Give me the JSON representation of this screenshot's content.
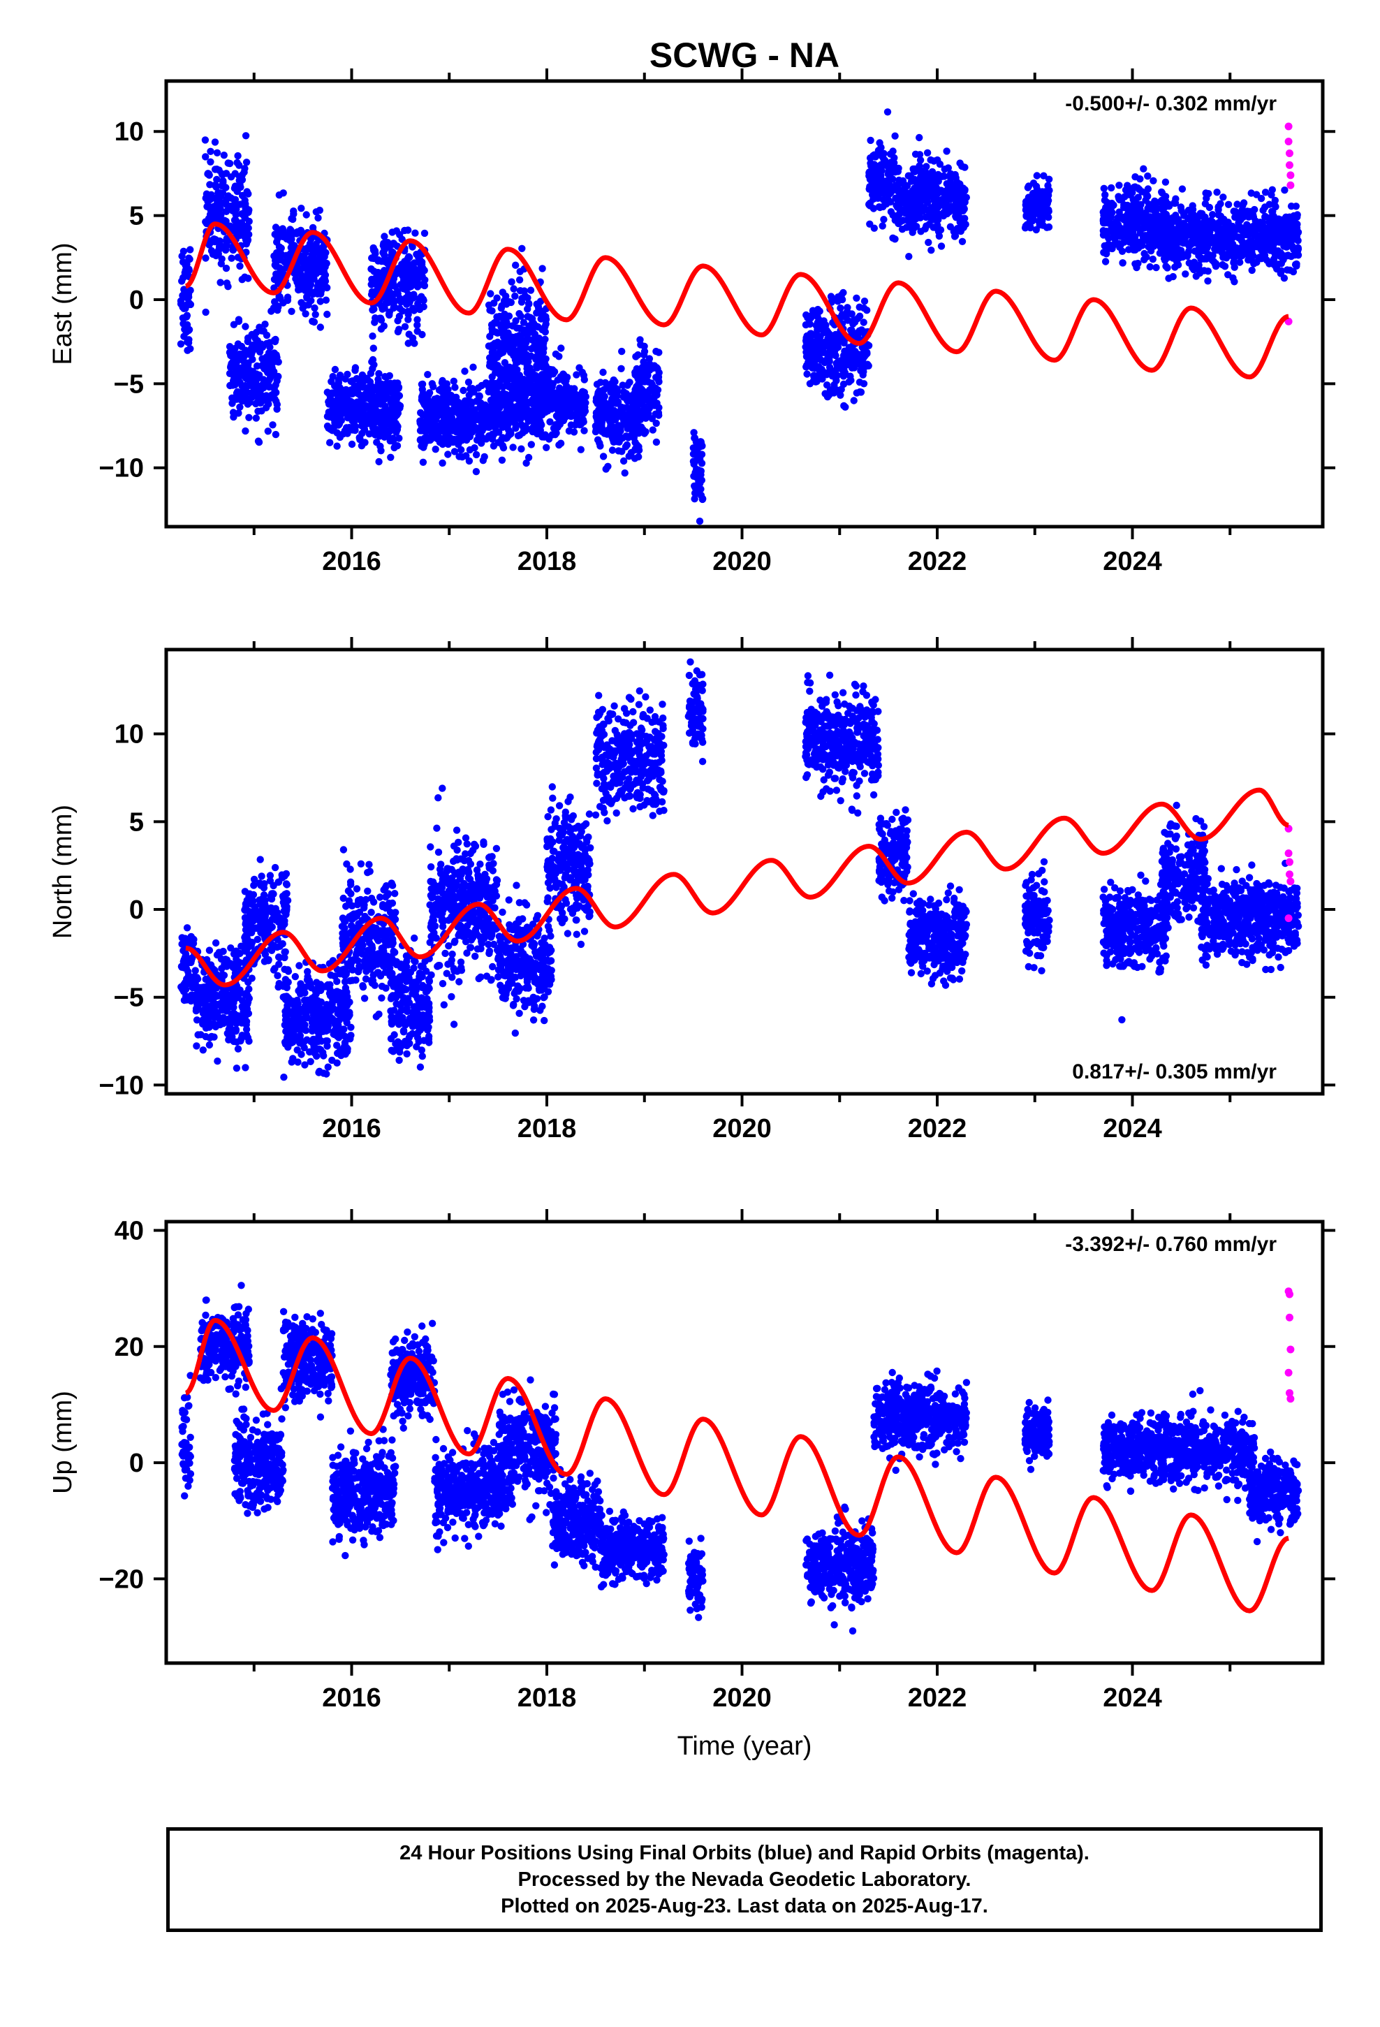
{
  "figure": {
    "title": "SCWG - NA",
    "xlabel": "Time (year)"
  },
  "footer": {
    "lines": [
      "24 Hour Positions Using Final Orbits (blue) and Rapid Orbits (magenta).",
      "Processed by the Nevada Geodetic Laboratory.",
      "Plotted on 2025-Aug-23. Last data on 2025-Aug-17."
    ]
  },
  "colors": {
    "final_orbits": "#0000ff",
    "rapid_orbits": "#ff00ff",
    "model_fit": "#ff0000",
    "frame": "#000000"
  },
  "chart_data": [
    {
      "type": "scatter",
      "component": "east",
      "ylabel": "East (mm)",
      "rate_label": "-0.500+/- 0.302 mm/yr",
      "rate_label_position": "top-right",
      "xlim": [
        2014.1,
        2025.95
      ],
      "ylim": [
        -13.5,
        13
      ],
      "yticks": [
        -10,
        -5,
        0,
        5,
        10
      ],
      "xticks": [
        2016,
        2018,
        2020,
        2022,
        2024
      ],
      "grid": false,
      "final_orbit_clusters": [
        {
          "x": [
            2014.25,
            2014.35
          ],
          "y_center": 0.5,
          "spread": 3.5
        },
        {
          "x": [
            2014.5,
            2014.95
          ],
          "y_center": 5.0,
          "spread": 3.0
        },
        {
          "x": [
            2014.75,
            2015.25
          ],
          "y_center": -4.5,
          "spread": 2.5
        },
        {
          "x": [
            2015.2,
            2015.75
          ],
          "y_center": 2.0,
          "spread": 2.5
        },
        {
          "x": [
            2015.75,
            2016.5
          ],
          "y_center": -6.5,
          "spread": 2.0
        },
        {
          "x": [
            2016.2,
            2016.75
          ],
          "y_center": 1.0,
          "spread": 2.5
        },
        {
          "x": [
            2016.7,
            2017.6
          ],
          "y_center": -7.0,
          "spread": 2.0
        },
        {
          "x": [
            2017.4,
            2018.0
          ],
          "y_center": -3.0,
          "spread": 3.5
        },
        {
          "x": [
            2017.6,
            2018.4
          ],
          "y_center": -6.0,
          "spread": 2.0
        },
        {
          "x": [
            2018.5,
            2018.95
          ],
          "y_center": -7.0,
          "spread": 2.0
        },
        {
          "x": [
            2018.9,
            2019.15
          ],
          "y_center": -5.5,
          "spread": 2.5
        },
        {
          "x": [
            2019.5,
            2019.6
          ],
          "y_center": -10.0,
          "spread": 2.5
        },
        {
          "x": [
            2020.65,
            2021.3
          ],
          "y_center": -3.0,
          "spread": 2.5
        },
        {
          "x": [
            2021.3,
            2021.6
          ],
          "y_center": 7.0,
          "spread": 2.0
        },
        {
          "x": [
            2021.6,
            2022.3
          ],
          "y_center": 6.0,
          "spread": 2.0
        },
        {
          "x": [
            2022.9,
            2023.15
          ],
          "y_center": 5.5,
          "spread": 1.5
        },
        {
          "x": [
            2023.7,
            2024.35
          ],
          "y_center": 4.5,
          "spread": 2.0
        },
        {
          "x": [
            2024.3,
            2025.7
          ],
          "y_center": 3.8,
          "spread": 1.8
        }
      ],
      "rapid_orbits": [
        {
          "x": 2025.6,
          "y": 10.3
        },
        {
          "x": 2025.6,
          "y": 9.4
        },
        {
          "x": 2025.61,
          "y": 8.7
        },
        {
          "x": 2025.61,
          "y": 8.0
        },
        {
          "x": 2025.62,
          "y": 7.4
        },
        {
          "x": 2025.62,
          "y": 6.8
        },
        {
          "x": 2025.6,
          "y": -1.3
        }
      ],
      "model": {
        "anchors": [
          {
            "x": 2014.3,
            "y": 0.8
          },
          {
            "x": 2014.6,
            "y": 4.5
          },
          {
            "x": 2015.2,
            "y": 0.4
          },
          {
            "x": 2015.6,
            "y": 4.0
          },
          {
            "x": 2016.2,
            "y": -0.2
          },
          {
            "x": 2016.6,
            "y": 3.5
          },
          {
            "x": 2017.2,
            "y": -0.8
          },
          {
            "x": 2017.6,
            "y": 3.0
          },
          {
            "x": 2018.2,
            "y": -1.2
          },
          {
            "x": 2018.6,
            "y": 2.5
          },
          {
            "x": 2019.2,
            "y": -1.5
          },
          {
            "x": 2019.6,
            "y": 2.0
          },
          {
            "x": 2020.2,
            "y": -2.1
          },
          {
            "x": 2020.6,
            "y": 1.5
          },
          {
            "x": 2021.2,
            "y": -2.6
          },
          {
            "x": 2021.6,
            "y": 1.0
          },
          {
            "x": 2022.2,
            "y": -3.1
          },
          {
            "x": 2022.6,
            "y": 0.5
          },
          {
            "x": 2023.2,
            "y": -3.6
          },
          {
            "x": 2023.6,
            "y": 0.0
          },
          {
            "x": 2024.2,
            "y": -4.2
          },
          {
            "x": 2024.6,
            "y": -0.5
          },
          {
            "x": 2025.2,
            "y": -4.6
          },
          {
            "x": 2025.6,
            "y": -1.0
          }
        ]
      }
    },
    {
      "type": "scatter",
      "component": "north",
      "ylabel": "North (mm)",
      "rate_label": "0.817+/- 0.305 mm/yr",
      "rate_label_position": "bottom-right",
      "xlim": [
        2014.1,
        2025.95
      ],
      "ylim": [
        -10.5,
        14.8
      ],
      "yticks": [
        -10,
        -5,
        0,
        5,
        10
      ],
      "xticks": [
        2016,
        2018,
        2020,
        2022,
        2024
      ],
      "grid": false,
      "final_orbit_clusters": [
        {
          "x": [
            2014.25,
            2014.4
          ],
          "y_center": -3.5,
          "spread": 2.0
        },
        {
          "x": [
            2014.4,
            2014.95
          ],
          "y_center": -5.0,
          "spread": 2.5
        },
        {
          "x": [
            2014.9,
            2015.35
          ],
          "y_center": -1.0,
          "spread": 2.5
        },
        {
          "x": [
            2015.3,
            2016.0
          ],
          "y_center": -6.0,
          "spread": 2.5
        },
        {
          "x": [
            2015.9,
            2016.45
          ],
          "y_center": -1.5,
          "spread": 3.0
        },
        {
          "x": [
            2016.4,
            2016.8
          ],
          "y_center": -5.5,
          "spread": 2.5
        },
        {
          "x": [
            2016.8,
            2017.5
          ],
          "y_center": 0.0,
          "spread": 3.5
        },
        {
          "x": [
            2017.5,
            2018.05
          ],
          "y_center": -3.0,
          "spread": 2.5
        },
        {
          "x": [
            2018.0,
            2018.45
          ],
          "y_center": 2.5,
          "spread": 3.0
        },
        {
          "x": [
            2018.5,
            2019.2
          ],
          "y_center": 8.5,
          "spread": 2.5
        },
        {
          "x": [
            2019.45,
            2019.6
          ],
          "y_center": 11.5,
          "spread": 2.0
        },
        {
          "x": [
            2020.65,
            2021.4
          ],
          "y_center": 9.5,
          "spread": 2.5
        },
        {
          "x": [
            2021.4,
            2021.7
          ],
          "y_center": 3.0,
          "spread": 2.0
        },
        {
          "x": [
            2021.7,
            2022.3
          ],
          "y_center": -1.5,
          "spread": 2.0
        },
        {
          "x": [
            2022.9,
            2023.15
          ],
          "y_center": -0.5,
          "spread": 2.0
        },
        {
          "x": [
            2023.7,
            2024.35
          ],
          "y_center": -1.0,
          "spread": 2.0
        },
        {
          "x": [
            2024.3,
            2024.75
          ],
          "y_center": 2.0,
          "spread": 2.5
        },
        {
          "x": [
            2024.7,
            2025.7
          ],
          "y_center": -0.5,
          "spread": 2.0
        }
      ],
      "rapid_orbits": [
        {
          "x": 2025.6,
          "y": 4.6
        },
        {
          "x": 2025.6,
          "y": 3.2
        },
        {
          "x": 2025.61,
          "y": 2.7
        },
        {
          "x": 2025.61,
          "y": 2.0
        },
        {
          "x": 2025.62,
          "y": 1.6
        },
        {
          "x": 2025.6,
          "y": -0.5
        }
      ],
      "model": {
        "anchors": [
          {
            "x": 2014.3,
            "y": -2.2
          },
          {
            "x": 2014.7,
            "y": -4.3
          },
          {
            "x": 2015.3,
            "y": -1.3
          },
          {
            "x": 2015.7,
            "y": -3.5
          },
          {
            "x": 2016.3,
            "y": -0.5
          },
          {
            "x": 2016.7,
            "y": -2.7
          },
          {
            "x": 2017.3,
            "y": 0.3
          },
          {
            "x": 2017.7,
            "y": -1.8
          },
          {
            "x": 2018.3,
            "y": 1.2
          },
          {
            "x": 2018.7,
            "y": -1.0
          },
          {
            "x": 2019.3,
            "y": 2.0
          },
          {
            "x": 2019.7,
            "y": -0.2
          },
          {
            "x": 2020.3,
            "y": 2.8
          },
          {
            "x": 2020.7,
            "y": 0.7
          },
          {
            "x": 2021.3,
            "y": 3.6
          },
          {
            "x": 2021.7,
            "y": 1.5
          },
          {
            "x": 2022.3,
            "y": 4.4
          },
          {
            "x": 2022.7,
            "y": 2.3
          },
          {
            "x": 2023.3,
            "y": 5.2
          },
          {
            "x": 2023.7,
            "y": 3.2
          },
          {
            "x": 2024.3,
            "y": 6.0
          },
          {
            "x": 2024.7,
            "y": 4.0
          },
          {
            "x": 2025.3,
            "y": 6.8
          },
          {
            "x": 2025.6,
            "y": 4.8
          }
        ]
      }
    },
    {
      "type": "scatter",
      "component": "up",
      "ylabel": "Up (mm)",
      "rate_label": "-3.392+/- 0.760 mm/yr",
      "rate_label_position": "top-right",
      "xlim": [
        2014.1,
        2025.95
      ],
      "ylim": [
        -34.5,
        41.5
      ],
      "yticks": [
        -20,
        0,
        20,
        40
      ],
      "xticks": [
        2016,
        2018,
        2020,
        2022,
        2024
      ],
      "grid": false,
      "final_orbit_clusters": [
        {
          "x": [
            2014.25,
            2014.35
          ],
          "y_center": 3.0,
          "spread": 8.0
        },
        {
          "x": [
            2014.45,
            2014.95
          ],
          "y_center": 20.0,
          "spread": 5.0
        },
        {
          "x": [
            2014.8,
            2015.3
          ],
          "y_center": 0.0,
          "spread": 7.0
        },
        {
          "x": [
            2015.3,
            2015.8
          ],
          "y_center": 18.0,
          "spread": 6.0
        },
        {
          "x": [
            2015.8,
            2016.45
          ],
          "y_center": -5.0,
          "spread": 7.0
        },
        {
          "x": [
            2016.4,
            2016.85
          ],
          "y_center": 15.0,
          "spread": 6.0
        },
        {
          "x": [
            2016.85,
            2017.55
          ],
          "y_center": -5.0,
          "spread": 6.0
        },
        {
          "x": [
            2017.5,
            2018.1
          ],
          "y_center": 2.0,
          "spread": 8.0
        },
        {
          "x": [
            2018.05,
            2018.55
          ],
          "y_center": -10.0,
          "spread": 6.0
        },
        {
          "x": [
            2018.55,
            2019.2
          ],
          "y_center": -15.0,
          "spread": 5.0
        },
        {
          "x": [
            2019.45,
            2019.6
          ],
          "y_center": -20.0,
          "spread": 5.0
        },
        {
          "x": [
            2020.65,
            2021.35
          ],
          "y_center": -18.0,
          "spread": 6.0
        },
        {
          "x": [
            2021.35,
            2022.3
          ],
          "y_center": 8.0,
          "spread": 5.0
        },
        {
          "x": [
            2022.9,
            2023.15
          ],
          "y_center": 5.0,
          "spread": 4.0
        },
        {
          "x": [
            2023.7,
            2025.25
          ],
          "y_center": 2.0,
          "spread": 5.0
        },
        {
          "x": [
            2025.2,
            2025.7
          ],
          "y_center": -5.0,
          "spread": 5.0
        }
      ],
      "rapid_orbits": [
        {
          "x": 2025.6,
          "y": 29.5
        },
        {
          "x": 2025.61,
          "y": 29.0
        },
        {
          "x": 2025.61,
          "y": 25.0
        },
        {
          "x": 2025.62,
          "y": 19.5
        },
        {
          "x": 2025.6,
          "y": 15.5
        },
        {
          "x": 2025.61,
          "y": 12.0
        },
        {
          "x": 2025.62,
          "y": 11.0
        }
      ],
      "model": {
        "anchors": [
          {
            "x": 2014.3,
            "y": 12.0
          },
          {
            "x": 2014.6,
            "y": 24.5
          },
          {
            "x": 2015.2,
            "y": 9.0
          },
          {
            "x": 2015.6,
            "y": 21.5
          },
          {
            "x": 2016.2,
            "y": 5.0
          },
          {
            "x": 2016.6,
            "y": 18.0
          },
          {
            "x": 2017.2,
            "y": 1.5
          },
          {
            "x": 2017.6,
            "y": 14.5
          },
          {
            "x": 2018.2,
            "y": -2.0
          },
          {
            "x": 2018.6,
            "y": 11.0
          },
          {
            "x": 2019.2,
            "y": -5.5
          },
          {
            "x": 2019.6,
            "y": 7.5
          },
          {
            "x": 2020.2,
            "y": -9.0
          },
          {
            "x": 2020.6,
            "y": 4.5
          },
          {
            "x": 2021.2,
            "y": -12.5
          },
          {
            "x": 2021.6,
            "y": 1.0
          },
          {
            "x": 2022.2,
            "y": -15.5
          },
          {
            "x": 2022.6,
            "y": -2.5
          },
          {
            "x": 2023.2,
            "y": -19.0
          },
          {
            "x": 2023.6,
            "y": -6.0
          },
          {
            "x": 2024.2,
            "y": -22.0
          },
          {
            "x": 2024.6,
            "y": -9.0
          },
          {
            "x": 2025.2,
            "y": -25.5
          },
          {
            "x": 2025.6,
            "y": -13.0
          }
        ]
      }
    }
  ]
}
